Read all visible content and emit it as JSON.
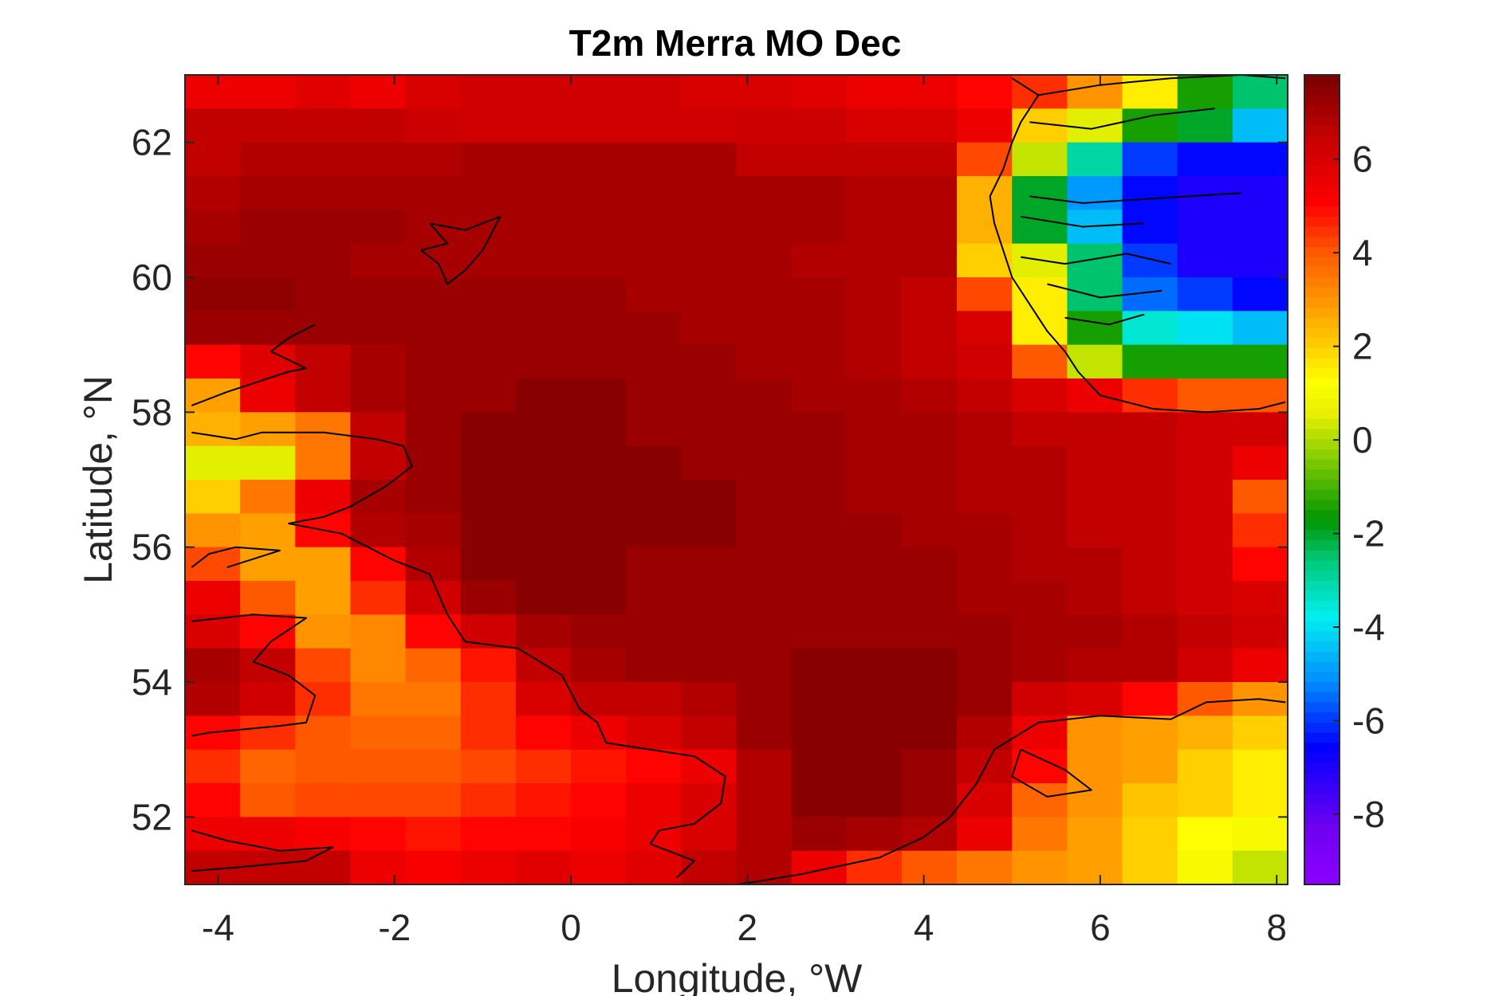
{
  "chart_data": {
    "type": "heatmap",
    "title": "T2m Merra MO Dec",
    "xlabel": "Longitude, °W",
    "ylabel": "Latitude, °N",
    "xlim": [
      -4.375,
      8.125
    ],
    "ylim": [
      51.0,
      63.0
    ],
    "x_ticks": [
      -4,
      -2,
      0,
      2,
      4,
      6,
      8
    ],
    "y_ticks": [
      52,
      54,
      56,
      58,
      60,
      62
    ],
    "x_tick_labels": [
      "-4",
      "-2",
      "0",
      "2",
      "4",
      "6",
      "8"
    ],
    "y_tick_labels": [
      "52",
      "54",
      "56",
      "58",
      "60",
      "62"
    ],
    "colorbar": {
      "colormap": "jet-like (dark red to purple)",
      "clim": [
        -9.5,
        7.8
      ],
      "ticks": [
        6,
        4,
        2,
        0,
        -2,
        -4,
        -6,
        -8
      ],
      "tick_labels": [
        "6",
        "4",
        "2",
        "0",
        "-2",
        "-4",
        "-6",
        "-8"
      ]
    },
    "x": [
      -4.0625,
      -3.4375,
      -2.8125,
      -2.1875,
      -1.5625,
      -0.9375,
      -0.3125,
      0.3125,
      0.9375,
      1.5625,
      2.1875,
      2.8125,
      3.4375,
      4.0625,
      4.6875,
      5.3125,
      5.9375,
      6.5625,
      7.1875,
      7.8125
    ],
    "y": [
      62.75,
      62.25,
      61.75,
      61.25,
      60.75,
      60.25,
      59.75,
      59.25,
      58.75,
      58.25,
      57.75,
      57.25,
      56.75,
      56.25,
      55.75,
      55.25,
      54.75,
      54.25,
      53.75,
      53.25,
      52.75,
      52.25,
      51.75,
      51.25
    ],
    "z": [
      [
        5.5,
        5.5,
        5.8,
        5.5,
        6.0,
        6.2,
        6.2,
        6.2,
        6.2,
        6.0,
        6.0,
        5.8,
        5.5,
        5.5,
        5.0,
        4.5,
        3.0,
        1.5,
        -1.5,
        -2.5
      ],
      [
        6.5,
        6.5,
        6.5,
        6.5,
        6.3,
        6.2,
        6.2,
        6.2,
        6.2,
        6.2,
        6.3,
        6.3,
        6.0,
        6.0,
        5.5,
        2.0,
        0.5,
        -1.5,
        -2.0,
        -4.5
      ],
      [
        6.5,
        6.8,
        6.8,
        6.8,
        6.8,
        7.0,
        7.0,
        7.0,
        7.0,
        7.0,
        6.5,
        6.5,
        6.5,
        6.5,
        4.2,
        0.2,
        -3.0,
        -6.0,
        -6.5,
        -6.5
      ],
      [
        6.8,
        7.0,
        7.0,
        7.0,
        7.0,
        7.0,
        7.0,
        7.0,
        7.0,
        7.0,
        7.0,
        7.0,
        6.8,
        6.8,
        2.5,
        -2.0,
        -5.0,
        -6.5,
        -7.0,
        -7.0
      ],
      [
        7.0,
        7.2,
        7.2,
        7.2,
        7.0,
        7.0,
        7.0,
        7.0,
        7.0,
        7.0,
        7.0,
        7.0,
        6.8,
        6.8,
        2.5,
        -2.0,
        -4.5,
        -6.5,
        -7.0,
        -7.0
      ],
      [
        7.2,
        7.2,
        7.2,
        7.0,
        7.0,
        7.0,
        7.0,
        7.0,
        7.0,
        7.0,
        7.0,
        6.8,
        6.8,
        6.8,
        2.0,
        0.5,
        -2.5,
        -6.0,
        -7.0,
        -7.0
      ],
      [
        7.4,
        7.4,
        7.2,
        7.2,
        7.2,
        7.2,
        7.2,
        7.2,
        7.0,
        7.0,
        7.0,
        7.0,
        6.8,
        6.5,
        4.2,
        1.5,
        -2.5,
        -5.5,
        -6.0,
        -6.5
      ],
      [
        7.2,
        7.2,
        7.2,
        7.2,
        7.2,
        7.2,
        7.2,
        7.2,
        7.2,
        7.0,
        7.0,
        7.0,
        6.8,
        6.5,
        6.0,
        1.5,
        -1.5,
        -3.5,
        -4.0,
        -4.5
      ],
      [
        5.0,
        5.8,
        6.5,
        7.0,
        7.2,
        7.2,
        7.2,
        7.2,
        7.2,
        7.2,
        7.0,
        7.0,
        6.8,
        6.5,
        6.2,
        4.0,
        0.2,
        -1.5,
        -1.5,
        -1.5
      ],
      [
        2.8,
        5.5,
        6.5,
        7.0,
        7.2,
        7.2,
        7.5,
        7.5,
        7.2,
        7.2,
        7.2,
        7.0,
        7.0,
        6.8,
        6.5,
        6.0,
        5.5,
        4.5,
        4.0,
        4.0
      ],
      [
        2.5,
        2.8,
        3.5,
        6.5,
        7.2,
        7.5,
        7.5,
        7.5,
        7.2,
        7.2,
        7.2,
        7.2,
        7.0,
        7.0,
        6.8,
        6.5,
        6.5,
        6.5,
        6.2,
        6.2
      ],
      [
        0.5,
        0.5,
        3.5,
        6.5,
        7.2,
        7.5,
        7.5,
        7.5,
        7.5,
        7.2,
        7.2,
        7.2,
        7.0,
        7.0,
        6.8,
        6.8,
        6.5,
        6.5,
        6.2,
        5.5
      ],
      [
        2.0,
        3.5,
        5.5,
        7.0,
        7.2,
        7.5,
        7.5,
        7.5,
        7.5,
        7.5,
        7.2,
        7.2,
        7.0,
        7.0,
        6.8,
        6.8,
        6.5,
        6.5,
        6.2,
        4.0
      ],
      [
        3.0,
        2.8,
        5.0,
        6.8,
        7.0,
        7.5,
        7.5,
        7.5,
        7.5,
        7.5,
        7.2,
        7.2,
        7.2,
        7.0,
        7.0,
        6.8,
        6.5,
        6.5,
        6.2,
        4.5
      ],
      [
        4.2,
        2.8,
        2.8,
        5.0,
        6.8,
        7.5,
        7.5,
        7.5,
        7.2,
        7.2,
        7.2,
        7.2,
        7.2,
        7.2,
        7.0,
        6.8,
        6.8,
        6.5,
        6.2,
        5.0
      ],
      [
        5.5,
        4.0,
        2.8,
        4.5,
        6.2,
        7.2,
        7.5,
        7.5,
        7.2,
        7.2,
        7.2,
        7.2,
        7.2,
        7.2,
        7.0,
        7.0,
        6.8,
        6.5,
        6.2,
        6.0
      ],
      [
        6.0,
        5.0,
        3.0,
        3.2,
        5.0,
        6.2,
        7.0,
        7.2,
        7.2,
        7.2,
        7.2,
        7.2,
        7.2,
        7.2,
        7.2,
        7.0,
        7.0,
        6.8,
        6.5,
        6.2
      ],
      [
        7.0,
        6.5,
        4.2,
        3.2,
        3.8,
        4.8,
        6.5,
        7.0,
        7.2,
        7.2,
        7.2,
        7.5,
        7.5,
        7.5,
        7.2,
        7.0,
        6.8,
        6.8,
        6.2,
        5.5
      ],
      [
        6.8,
        6.2,
        4.5,
        3.5,
        3.5,
        4.5,
        6.0,
        6.5,
        6.5,
        6.8,
        7.2,
        7.5,
        7.5,
        7.5,
        7.2,
        6.2,
        6.0,
        5.0,
        4.0,
        3.0
      ],
      [
        5.0,
        4.5,
        4.0,
        3.8,
        3.8,
        4.5,
        5.0,
        5.5,
        6.0,
        6.5,
        7.2,
        7.5,
        7.5,
        7.5,
        6.8,
        5.5,
        3.0,
        2.8,
        2.5,
        2.0
      ],
      [
        4.5,
        3.8,
        4.0,
        4.0,
        4.0,
        4.2,
        4.5,
        4.8,
        5.0,
        5.5,
        6.8,
        7.5,
        7.5,
        7.2,
        6.5,
        5.0,
        3.0,
        2.8,
        2.0,
        1.5
      ],
      [
        5.0,
        4.0,
        4.2,
        4.2,
        4.2,
        4.5,
        4.8,
        5.0,
        5.5,
        6.0,
        6.8,
        7.5,
        7.5,
        7.2,
        6.0,
        3.8,
        3.0,
        2.2,
        2.0,
        1.5
      ],
      [
        5.5,
        5.5,
        5.2,
        5.0,
        4.8,
        5.0,
        5.0,
        5.2,
        5.5,
        6.0,
        6.8,
        7.2,
        7.0,
        6.8,
        5.5,
        3.5,
        2.8,
        2.0,
        1.2,
        1.0
      ],
      [
        6.5,
        6.5,
        6.5,
        5.5,
        5.2,
        5.5,
        5.8,
        5.5,
        5.8,
        6.5,
        6.8,
        5.5,
        4.5,
        4.0,
        3.5,
        3.0,
        2.8,
        2.0,
        1.0,
        0.2
      ]
    ]
  }
}
